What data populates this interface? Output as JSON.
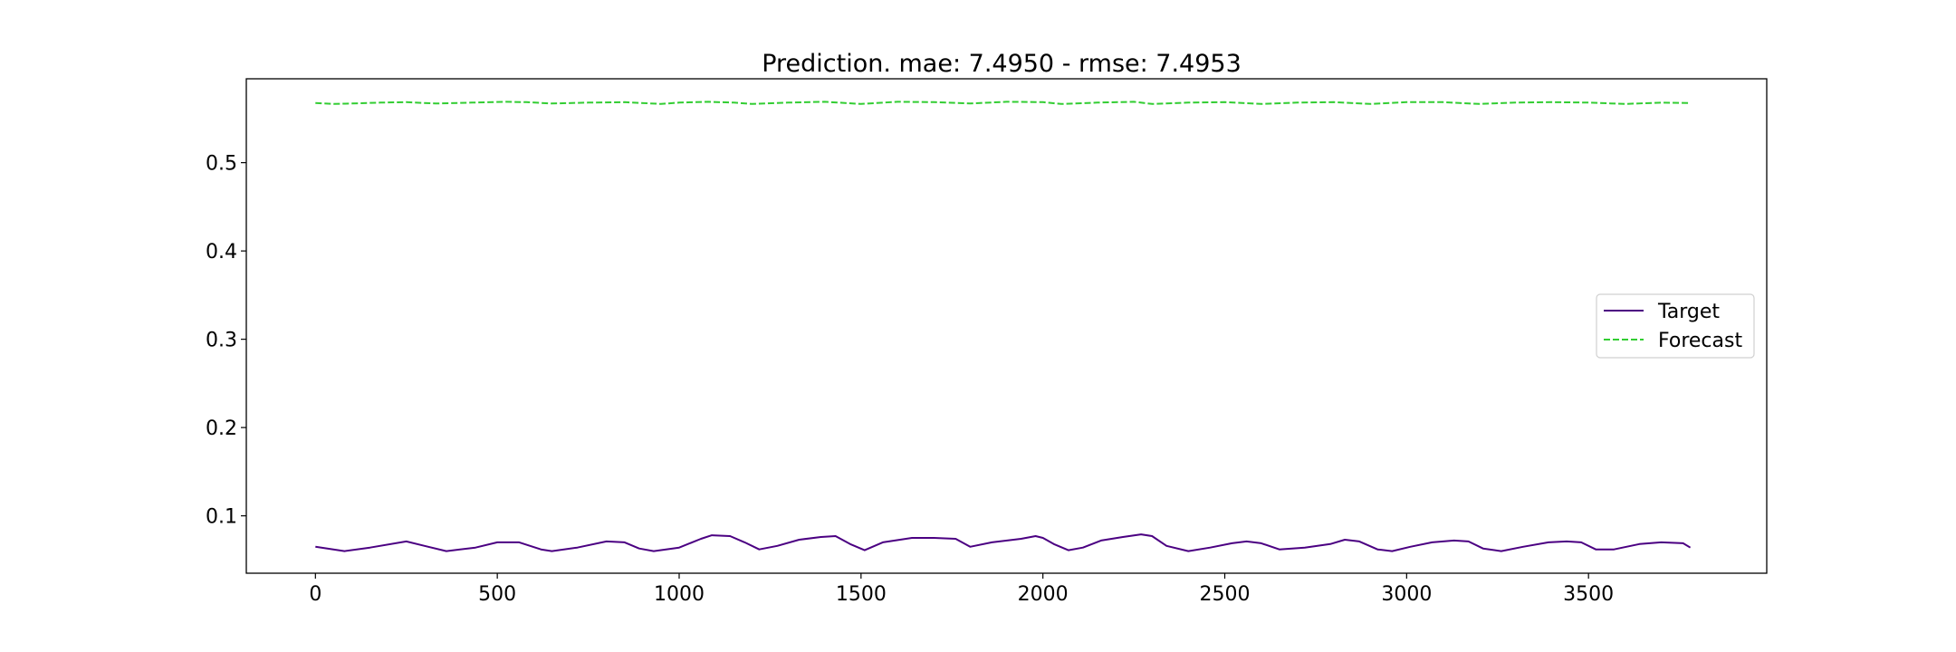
{
  "chart_data": {
    "type": "line",
    "title": "Prediction. mae: 7.4950 - rmse: 7.4953",
    "xlabel": "",
    "ylabel": "",
    "xlim": [
      -190,
      3990
    ],
    "ylim": [
      0.035,
      0.595
    ],
    "x_ticks": [
      0,
      500,
      1000,
      1500,
      2000,
      2500,
      3000,
      3500
    ],
    "x_tick_labels": [
      "0",
      "500",
      "1000",
      "1500",
      "2000",
      "2500",
      "3000",
      "3500"
    ],
    "y_ticks": [
      0.1,
      0.2,
      0.3,
      0.4,
      0.5
    ],
    "y_tick_labels": [
      "0.1",
      "0.2",
      "0.3",
      "0.4",
      "0.5"
    ],
    "grid": false,
    "legend_position": "center-right",
    "series": [
      {
        "name": "Target",
        "color": "#4b0082",
        "style": "solid",
        "x": [
          0,
          80,
          150,
          250,
          300,
          360,
          440,
          500,
          560,
          620,
          650,
          720,
          800,
          850,
          890,
          930,
          1000,
          1060,
          1090,
          1140,
          1180,
          1220,
          1270,
          1330,
          1390,
          1430,
          1470,
          1510,
          1560,
          1640,
          1700,
          1760,
          1800,
          1860,
          1940,
          1980,
          2000,
          2030,
          2070,
          2110,
          2160,
          2220,
          2270,
          2300,
          2340,
          2400,
          2460,
          2520,
          2560,
          2600,
          2650,
          2720,
          2790,
          2830,
          2870,
          2920,
          2960,
          3010,
          3070,
          3130,
          3170,
          3210,
          3260,
          3320,
          3390,
          3440,
          3480,
          3520,
          3570,
          3640,
          3700,
          3760,
          3780
        ],
        "y": [
          0.065,
          0.06,
          0.064,
          0.071,
          0.066,
          0.06,
          0.064,
          0.07,
          0.07,
          0.062,
          0.06,
          0.064,
          0.071,
          0.07,
          0.063,
          0.06,
          0.064,
          0.074,
          0.078,
          0.077,
          0.07,
          0.062,
          0.066,
          0.073,
          0.076,
          0.077,
          0.068,
          0.061,
          0.07,
          0.075,
          0.075,
          0.074,
          0.065,
          0.07,
          0.074,
          0.077,
          0.075,
          0.068,
          0.061,
          0.064,
          0.072,
          0.076,
          0.079,
          0.077,
          0.066,
          0.06,
          0.064,
          0.069,
          0.071,
          0.069,
          0.062,
          0.064,
          0.068,
          0.073,
          0.071,
          0.062,
          0.06,
          0.065,
          0.07,
          0.072,
          0.071,
          0.063,
          0.06,
          0.065,
          0.07,
          0.071,
          0.07,
          0.062,
          0.062,
          0.068,
          0.07,
          0.069,
          0.064
        ]
      },
      {
        "name": "Forecast",
        "color": "#32cd32",
        "style": "dashed",
        "x": [
          0,
          50,
          100,
          180,
          250,
          330,
          430,
          520,
          580,
          650,
          750,
          850,
          950,
          1000,
          1080,
          1150,
          1200,
          1300,
          1400,
          1500,
          1600,
          1700,
          1800,
          1900,
          2000,
          2050,
          2150,
          2250,
          2300,
          2400,
          2500,
          2600,
          2700,
          2800,
          2900,
          3000,
          3100,
          3200,
          3300,
          3400,
          3500,
          3600,
          3700,
          3780
        ],
        "y": [
          0.5675,
          0.5665,
          0.567,
          0.568,
          0.5685,
          0.567,
          0.568,
          0.569,
          0.5685,
          0.567,
          0.568,
          0.5685,
          0.5665,
          0.568,
          0.569,
          0.568,
          0.5665,
          0.568,
          0.569,
          0.5665,
          0.569,
          0.5685,
          0.567,
          0.569,
          0.5685,
          0.5665,
          0.568,
          0.569,
          0.5665,
          0.568,
          0.5685,
          0.5665,
          0.568,
          0.5685,
          0.5665,
          0.5685,
          0.5685,
          0.5665,
          0.568,
          0.5685,
          0.568,
          0.5665,
          0.568,
          0.5675
        ]
      }
    ]
  }
}
